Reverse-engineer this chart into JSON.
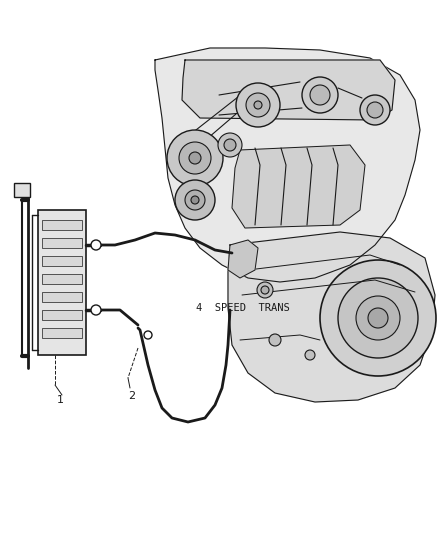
{
  "background_color": "#ffffff",
  "line_color": "#1a1a1a",
  "gray_fill": "#d8d8d8",
  "light_gray": "#ebebeb",
  "label_1": "1",
  "label_2": "2",
  "label_4speed": "4  SPEED  TRANS",
  "fig_width": 4.38,
  "fig_height": 5.33,
  "dpi": 100
}
